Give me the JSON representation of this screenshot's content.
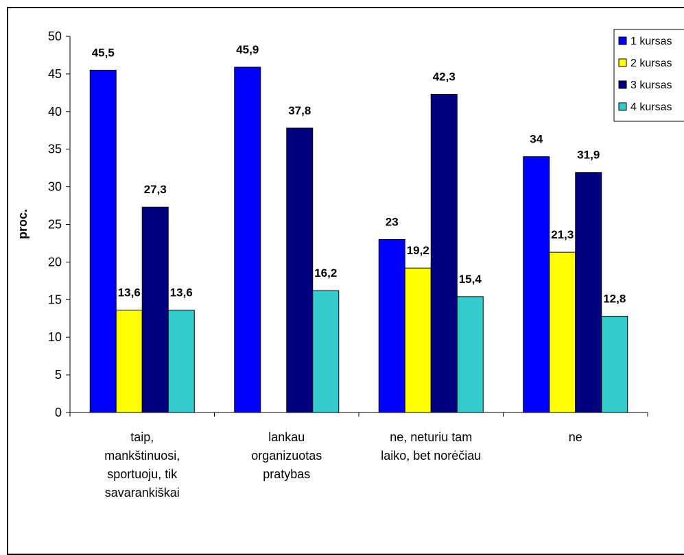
{
  "chart_data": {
    "type": "bar",
    "title": "",
    "xlabel": "",
    "ylabel": "proc.",
    "ylim": [
      0,
      50
    ],
    "ytick_step": 5,
    "grid": false,
    "legend_position": "top-right",
    "categories": [
      "taip, mankštinuosi, sportuoju, tik savarankiškai",
      "lankau organizuotas pratybas",
      "ne, neturiu tam laiko, bet norėčiau",
      "ne"
    ],
    "category_lines": [
      [
        "taip,",
        "mankštinuosi,",
        "sportuoju, tik",
        "savarankiškai"
      ],
      [
        "lankau",
        "organizuotas",
        "pratybas"
      ],
      [
        "ne, neturiu tam",
        "laiko, bet norėčiau"
      ],
      [
        "ne"
      ]
    ],
    "series": [
      {
        "name": "1 kursas",
        "color": "#0000ff",
        "values": [
          45.5,
          45.9,
          23,
          34
        ],
        "labels": [
          "45,5",
          "45,9",
          "23",
          "34"
        ]
      },
      {
        "name": "2 kursas",
        "color": "#ffff00",
        "values": [
          13.6,
          null,
          19.2,
          21.3
        ],
        "labels": [
          "13,6",
          "",
          "19,2",
          "21,3"
        ]
      },
      {
        "name": "3 kursas",
        "color": "#000080",
        "values": [
          27.3,
          37.8,
          42.3,
          31.9
        ],
        "labels": [
          "27,3",
          "37,8",
          "42,3",
          "31,9"
        ]
      },
      {
        "name": "4 kursas",
        "color": "#33cccc",
        "values": [
          13.6,
          16.2,
          15.4,
          12.8
        ],
        "labels": [
          "13,6",
          "16,2",
          "15,4",
          "12,8"
        ]
      }
    ]
  }
}
